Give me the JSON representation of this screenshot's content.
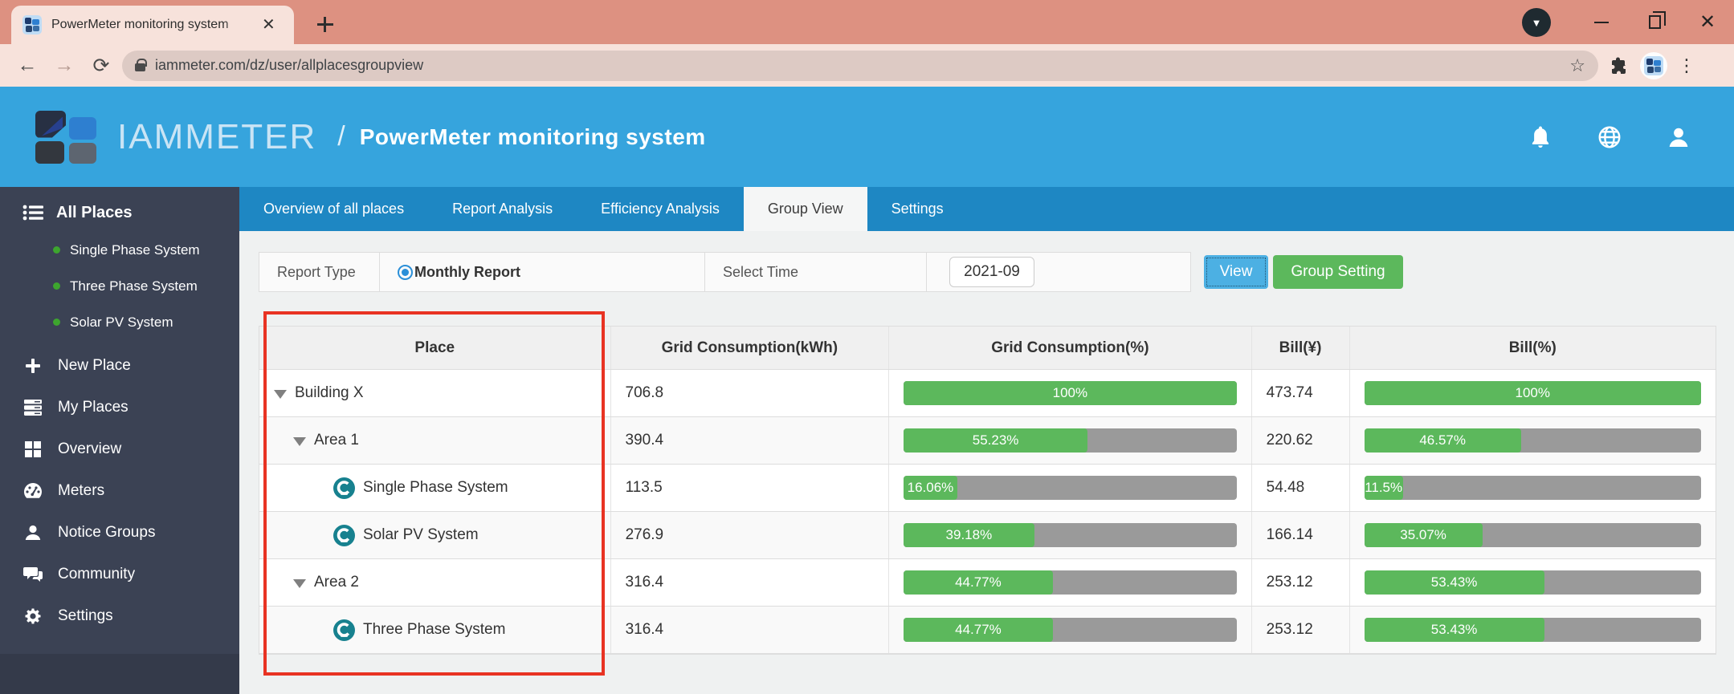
{
  "browser": {
    "tab_title": "PowerMeter monitoring system",
    "url": "iammeter.com/dz/user/allplacesgroupview"
  },
  "header": {
    "brand": "IAMMETER",
    "separator": "/",
    "title": "PowerMeter monitoring system"
  },
  "sidebar": {
    "root": "All Places",
    "systems": [
      "Single Phase System",
      "Three Phase System",
      "Solar PV System"
    ],
    "items": [
      {
        "label": "New Place",
        "icon": "plus-icon"
      },
      {
        "label": "My Places",
        "icon": "places-icon"
      },
      {
        "label": "Overview",
        "icon": "grid-icon"
      },
      {
        "label": "Meters",
        "icon": "gauge-icon"
      },
      {
        "label": "Notice Groups",
        "icon": "user-icon"
      },
      {
        "label": "Community",
        "icon": "chat-icon"
      },
      {
        "label": "Settings",
        "icon": "gear-icon"
      }
    ]
  },
  "main_tabs": [
    {
      "label": "Overview of all places",
      "active": false
    },
    {
      "label": "Report Analysis",
      "active": false
    },
    {
      "label": "Efficiency Analysis",
      "active": false
    },
    {
      "label": "Group View",
      "active": true
    },
    {
      "label": "Settings",
      "active": false
    }
  ],
  "filters": {
    "report_type_label": "Report Type",
    "report_type_value": "Monthly Report",
    "select_time_label": "Select Time",
    "time_value": "2021-09",
    "view_button": "View",
    "group_setting_button": "Group Setting"
  },
  "table": {
    "columns": [
      "Place",
      "Grid Consumption(kWh)",
      "Grid Consumption(%)",
      "Bill(¥)",
      "Bill(%)"
    ],
    "rows": [
      {
        "place": "Building X",
        "level": 0,
        "node": "group",
        "kwh": "706.8",
        "grid_pct": 100,
        "grid_pct_label": "100%",
        "bill": "473.74",
        "bill_pct": 100,
        "bill_pct_label": "100%"
      },
      {
        "place": "Area 1",
        "level": 1,
        "node": "group",
        "kwh": "390.4",
        "grid_pct": 55.23,
        "grid_pct_label": "55.23%",
        "bill": "220.62",
        "bill_pct": 46.57,
        "bill_pct_label": "46.57%"
      },
      {
        "place": "Single Phase System",
        "level": 2,
        "node": "meter",
        "kwh": "113.5",
        "grid_pct": 16.06,
        "grid_pct_label": "16.06%",
        "bill": "54.48",
        "bill_pct": 11.5,
        "bill_pct_label": "11.5%"
      },
      {
        "place": "Solar PV System",
        "level": 2,
        "node": "meter",
        "kwh": "276.9",
        "grid_pct": 39.18,
        "grid_pct_label": "39.18%",
        "bill": "166.14",
        "bill_pct": 35.07,
        "bill_pct_label": "35.07%"
      },
      {
        "place": "Area 2",
        "level": 1,
        "node": "group",
        "kwh": "316.4",
        "grid_pct": 44.77,
        "grid_pct_label": "44.77%",
        "bill": "253.12",
        "bill_pct": 53.43,
        "bill_pct_label": "53.43%"
      },
      {
        "place": "Three Phase System",
        "level": 2,
        "node": "meter",
        "kwh": "316.4",
        "grid_pct": 44.77,
        "grid_pct_label": "44.77%",
        "bill": "253.12",
        "bill_pct": 53.43,
        "bill_pct_label": "53.43%"
      }
    ]
  },
  "colors": {
    "header_blue": "#36a4dd",
    "tabbar_blue": "#1e87c3",
    "sidebar_dark": "#3b4254",
    "bar_green": "#5cb85c",
    "bar_gray": "#9a9a9a",
    "meter_teal": "#17818f",
    "highlight_red": "#e83323",
    "chrome_salmon": "#dd9181"
  }
}
